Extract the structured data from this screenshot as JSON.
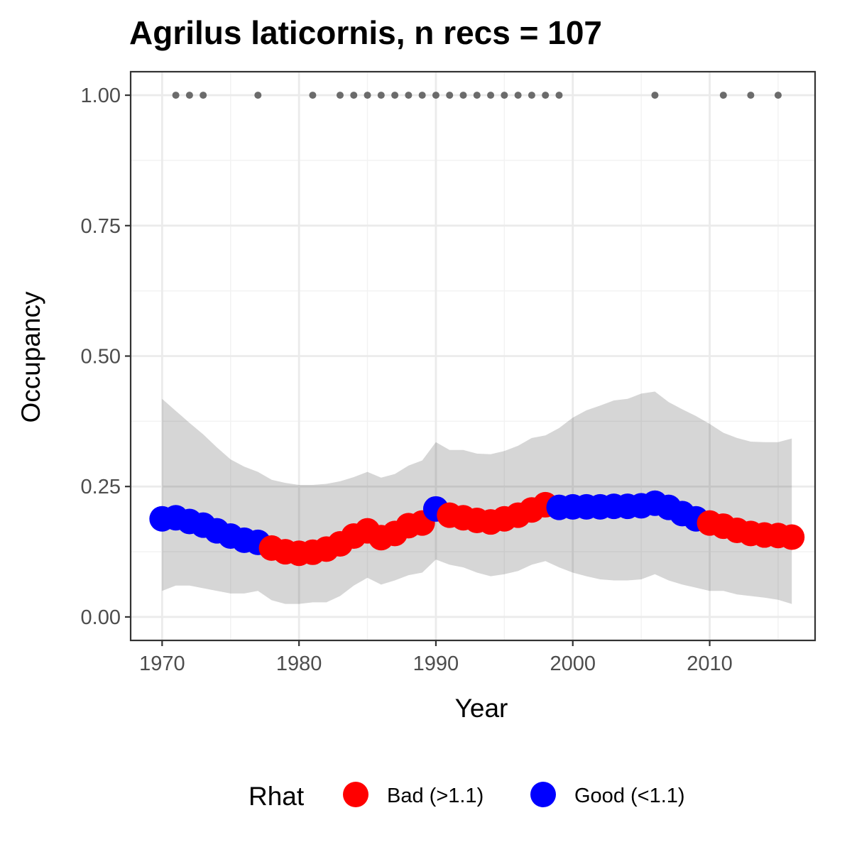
{
  "chart_data": {
    "type": "line",
    "title": "Agrilus laticornis, n recs = 107",
    "xlabel": "Year",
    "ylabel": "Occupancy",
    "xlim": [
      1967.7,
      2017.7
    ],
    "ylim": [
      -0.045,
      1.045
    ],
    "x_ticks": [
      1970,
      1980,
      1990,
      2000,
      2010
    ],
    "x_tick_labels": [
      "1970",
      "1980",
      "1990",
      "2000",
      "2010"
    ],
    "y_ticks": [
      0,
      0.25,
      0.5,
      0.75,
      1
    ],
    "y_tick_labels": [
      "0.00",
      "0.25",
      "0.50",
      "0.75",
      "1.00"
    ],
    "grid": true,
    "legend": {
      "title": "Rhat",
      "position": "bottom",
      "entries": [
        {
          "label": "Bad (>1.1)",
          "color": "#ff0000"
        },
        {
          "label": "Good (<1.1)",
          "color": "#0000ff"
        }
      ]
    },
    "series": [
      {
        "x": [
          1970,
          1971,
          1972,
          1973,
          1974,
          1975,
          1976,
          1977,
          1978,
          1979,
          1980,
          1981,
          1982,
          1983,
          1984,
          1985,
          1986,
          1987,
          1988,
          1989,
          1990,
          1991,
          1992,
          1993,
          1994,
          1995,
          1996,
          1997,
          1998,
          1999,
          2000,
          2001,
          2002,
          2003,
          2004,
          2005,
          2006,
          2007,
          2008,
          2009,
          2010,
          2011,
          2012,
          2013,
          2014,
          2015,
          2016
        ],
        "y": [
          0.188,
          0.19,
          0.183,
          0.176,
          0.165,
          0.155,
          0.147,
          0.143,
          0.132,
          0.125,
          0.122,
          0.124,
          0.13,
          0.14,
          0.155,
          0.165,
          0.152,
          0.16,
          0.175,
          0.18,
          0.207,
          0.195,
          0.19,
          0.185,
          0.182,
          0.188,
          0.195,
          0.205,
          0.215,
          0.21,
          0.211,
          0.211,
          0.211,
          0.212,
          0.212,
          0.213,
          0.218,
          0.21,
          0.198,
          0.188,
          0.18,
          0.174,
          0.166,
          0.16,
          0.157,
          0.156,
          0.153
        ],
        "rhat": [
          "Good",
          "Good",
          "Good",
          "Good",
          "Good",
          "Good",
          "Good",
          "Good",
          "Bad",
          "Bad",
          "Bad",
          "Bad",
          "Bad",
          "Bad",
          "Bad",
          "Bad",
          "Bad",
          "Bad",
          "Bad",
          "Bad",
          "Good",
          "Bad",
          "Bad",
          "Bad",
          "Bad",
          "Bad",
          "Bad",
          "Bad",
          "Bad",
          "Good",
          "Good",
          "Good",
          "Good",
          "Good",
          "Good",
          "Good",
          "Good",
          "Good",
          "Good",
          "Good",
          "Bad",
          "Bad",
          "Bad",
          "Bad",
          "Bad",
          "Bad",
          "Bad"
        ],
        "lower": [
          0.05,
          0.06,
          0.06,
          0.055,
          0.05,
          0.045,
          0.045,
          0.05,
          0.032,
          0.025,
          0.025,
          0.028,
          0.028,
          0.04,
          0.06,
          0.075,
          0.062,
          0.07,
          0.08,
          0.085,
          0.11,
          0.1,
          0.095,
          0.085,
          0.078,
          0.082,
          0.088,
          0.1,
          0.107,
          0.095,
          0.085,
          0.078,
          0.072,
          0.07,
          0.07,
          0.072,
          0.082,
          0.07,
          0.062,
          0.056,
          0.05,
          0.05,
          0.043,
          0.04,
          0.037,
          0.033,
          0.025
        ],
        "upper": [
          0.418,
          0.395,
          0.372,
          0.35,
          0.325,
          0.302,
          0.288,
          0.278,
          0.263,
          0.257,
          0.253,
          0.253,
          0.255,
          0.26,
          0.268,
          0.278,
          0.267,
          0.274,
          0.29,
          0.3,
          0.335,
          0.32,
          0.32,
          0.313,
          0.312,
          0.318,
          0.328,
          0.343,
          0.348,
          0.362,
          0.382,
          0.396,
          0.405,
          0.415,
          0.418,
          0.428,
          0.432,
          0.412,
          0.398,
          0.385,
          0.37,
          0.353,
          0.343,
          0.336,
          0.335,
          0.335,
          0.342
        ]
      }
    ],
    "records": {
      "y": 1,
      "years": [
        1971,
        1972,
        1973,
        1977,
        1981,
        1983,
        1984,
        1985,
        1986,
        1987,
        1988,
        1989,
        1990,
        1991,
        1992,
        1993,
        1994,
        1995,
        1996,
        1997,
        1998,
        1999,
        2006,
        2011,
        2013,
        2015
      ],
      "color": "#6b6b6b"
    }
  }
}
